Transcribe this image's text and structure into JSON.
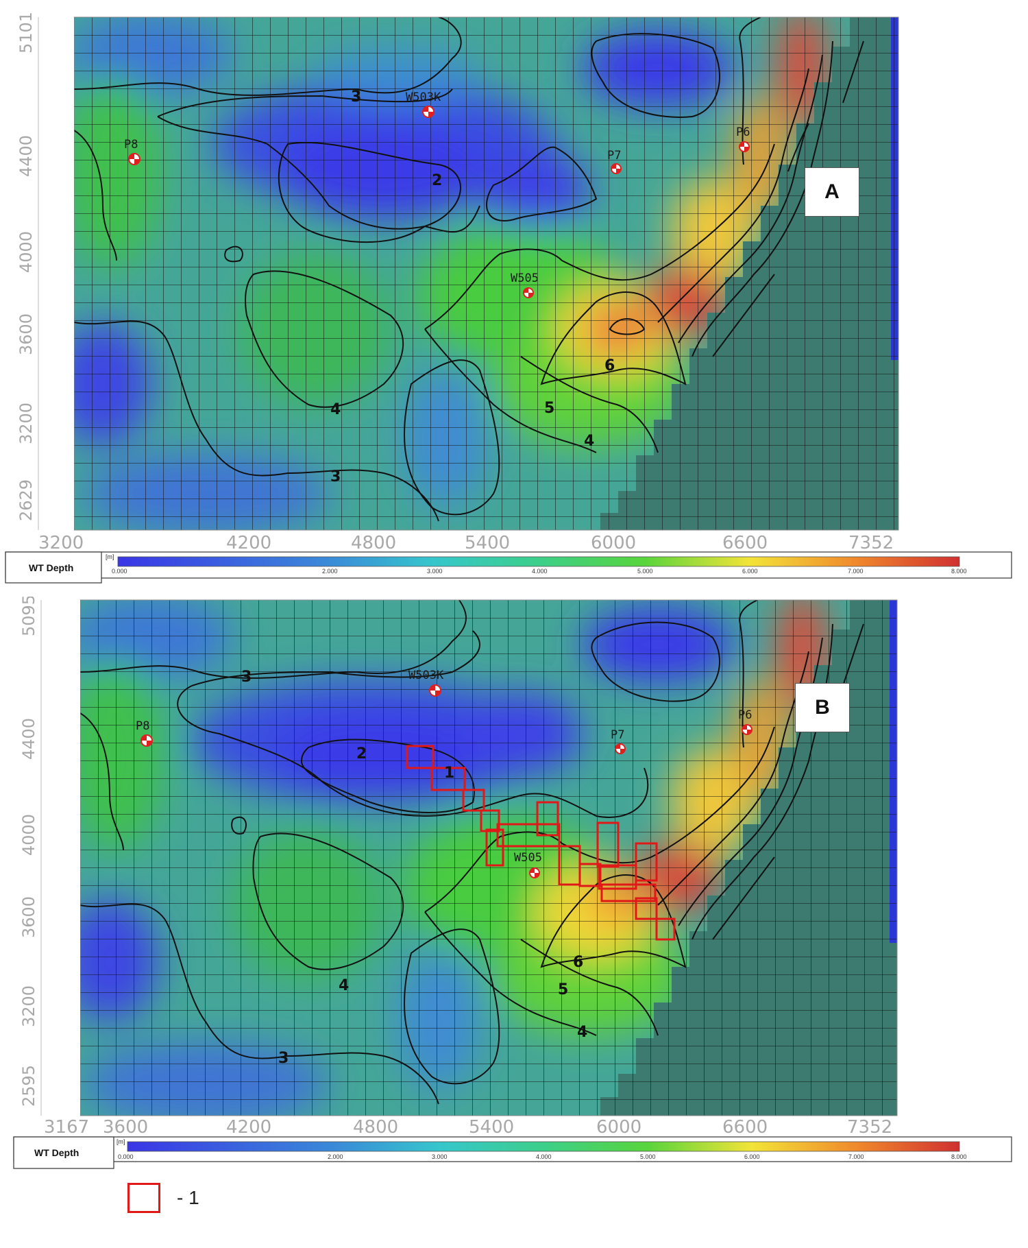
{
  "legend": {
    "title": "WT Depth",
    "unit": "[m]",
    "ticks": [
      "0.000",
      "2.000",
      "3.000",
      "4.000",
      "5.000",
      "6.000",
      "7.000",
      "8.000"
    ],
    "colors": [
      "#3a3ae0",
      "#3aa8c0",
      "#34c6b0",
      "#38c870",
      "#58d040",
      "#f0e040",
      "#f08030",
      "#d03030"
    ]
  },
  "colors": {
    "low": "#3c3ce6",
    "mid": "#3fa8a0",
    "green": "#3fc24a",
    "yellow": "#f0e23c",
    "red": "#d83a36",
    "inactive": "#3d7a70",
    "highlight": "#e01818"
  },
  "panels": [
    {
      "id": "A",
      "tag": "A",
      "x_ticks": [
        "3200",
        "4200",
        "4800",
        "5400",
        "6000",
        "6600",
        "7352"
      ],
      "y_ticks": [
        "5101",
        "4400",
        "4000",
        "3600",
        "3200",
        "2629"
      ],
      "contour_labels": [
        "3",
        "2",
        "4",
        "3",
        "6",
        "5",
        "4"
      ],
      "wells": [
        "W503K",
        "P8",
        "P7",
        "P6",
        "W505"
      ]
    },
    {
      "id": "B",
      "tag": "B",
      "x_ticks": [
        "3167",
        "3600",
        "4200",
        "4800",
        "5400",
        "6000",
        "6600",
        "7352"
      ],
      "y_ticks": [
        "5095",
        "4400",
        "4000",
        "3600",
        "3200",
        "2595"
      ],
      "contour_labels": [
        "3",
        "2",
        "1",
        "4",
        "3",
        "6",
        "5",
        "4"
      ],
      "wells": [
        "W503K",
        "P8",
        "P7",
        "P6",
        "W505"
      ]
    }
  ],
  "key": {
    "label": "- 1"
  }
}
